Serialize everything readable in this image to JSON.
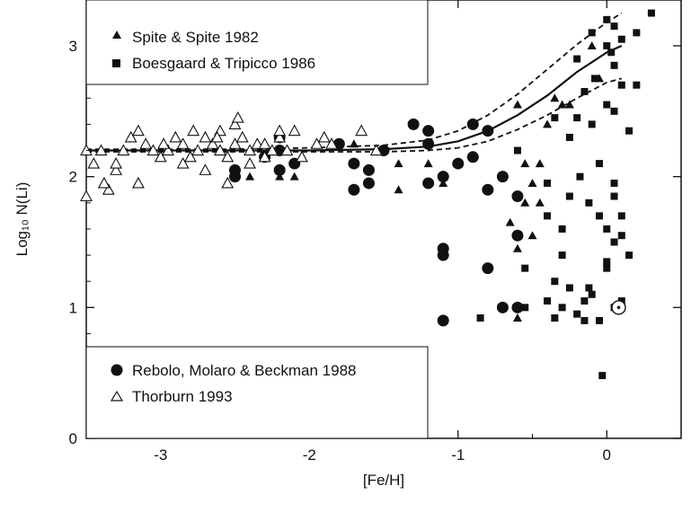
{
  "chart_data": {
    "type": "scatter",
    "title": "",
    "xlabel": "[Fe/H]",
    "ylabel": "Log₁₀ N(Li)",
    "xlim": [
      -3.5,
      0.5
    ],
    "ylim": [
      0,
      3.35
    ],
    "xticks": [
      -3,
      -2,
      -1,
      0
    ],
    "xtick_labels": [
      "-3",
      "-2",
      "-1",
      "0"
    ],
    "yticks": [
      0,
      1,
      2,
      3
    ],
    "ytick_labels": [
      "0",
      "1",
      "2",
      "3"
    ],
    "grid": false,
    "legend_placement": [
      "top-left",
      "bottom-left"
    ],
    "series": [
      {
        "name": "Spite & Spite 1982",
        "marker": "filled-triangle",
        "color": "#111111",
        "points": [
          [
            -2.5,
            2.0
          ],
          [
            -2.4,
            2.0
          ],
          [
            -2.2,
            2.0
          ],
          [
            -2.1,
            2.0
          ],
          [
            -1.7,
            2.25
          ],
          [
            -1.4,
            2.1
          ],
          [
            -1.4,
            1.9
          ],
          [
            -1.2,
            2.1
          ],
          [
            -1.1,
            1.95
          ],
          [
            -0.65,
            1.65
          ],
          [
            -0.6,
            1.55
          ],
          [
            -0.6,
            1.45
          ],
          [
            -0.6,
            0.92
          ],
          [
            -0.55,
            2.1
          ],
          [
            -0.55,
            1.8
          ],
          [
            -0.5,
            1.95
          ],
          [
            -0.5,
            1.55
          ],
          [
            -0.45,
            2.1
          ],
          [
            -0.45,
            1.8
          ],
          [
            -0.4,
            2.4
          ],
          [
            -0.35,
            2.6
          ],
          [
            -0.3,
            2.55
          ],
          [
            -0.25,
            2.55
          ],
          [
            -0.6,
            2.55
          ],
          [
            -0.1,
            3.0
          ],
          [
            -0.05,
            2.75
          ]
        ]
      },
      {
        "name": "Boesgaard & Tripicco 1986",
        "marker": "filled-square",
        "color": "#111111",
        "points": [
          [
            -0.85,
            0.92
          ],
          [
            -0.8,
            1.3
          ],
          [
            -0.6,
            2.2
          ],
          [
            -0.55,
            1.0
          ],
          [
            -0.55,
            1.3
          ],
          [
            -0.4,
            1.05
          ],
          [
            -0.4,
            1.7
          ],
          [
            -0.4,
            1.95
          ],
          [
            -0.35,
            1.2
          ],
          [
            -0.35,
            2.45
          ],
          [
            -0.3,
            1.0
          ],
          [
            -0.3,
            1.6
          ],
          [
            -0.25,
            1.15
          ],
          [
            -0.25,
            2.3
          ],
          [
            -0.2,
            0.95
          ],
          [
            -0.2,
            2.9
          ],
          [
            -0.15,
            1.05
          ],
          [
            -0.15,
            2.65
          ],
          [
            -0.1,
            1.1
          ],
          [
            -0.1,
            2.4
          ],
          [
            -0.05,
            0.9
          ],
          [
            -0.05,
            2.1
          ],
          [
            0.0,
            1.35
          ],
          [
            0.0,
            2.55
          ],
          [
            0.0,
            3.0
          ],
          [
            0.05,
            1.5
          ],
          [
            0.05,
            1.0
          ],
          [
            0.05,
            2.5
          ],
          [
            0.1,
            1.7
          ],
          [
            0.1,
            2.7
          ],
          [
            0.1,
            1.05
          ],
          [
            0.15,
            2.35
          ],
          [
            0.15,
            1.4
          ],
          [
            0.2,
            3.1
          ],
          [
            0.2,
            2.7
          ],
          [
            0.3,
            3.25
          ],
          [
            -0.03,
            0.48
          ],
          [
            -0.15,
            0.9
          ],
          [
            -0.12,
            1.15
          ],
          [
            -0.12,
            1.8
          ],
          [
            0.0,
            1.6
          ],
          [
            0.0,
            1.3
          ],
          [
            0.05,
            1.95
          ],
          [
            0.05,
            2.85
          ],
          [
            -0.1,
            3.1
          ],
          [
            0.05,
            3.15
          ],
          [
            0.1,
            3.05
          ],
          [
            -0.2,
            2.45
          ],
          [
            -0.18,
            2.0
          ],
          [
            0.05,
            1.85
          ],
          [
            -0.3,
            1.4
          ],
          [
            -0.25,
            1.85
          ],
          [
            -0.05,
            1.7
          ],
          [
            0.1,
            1.55
          ],
          [
            0.0,
            3.2
          ],
          [
            0.03,
            2.95
          ],
          [
            -0.08,
            2.75
          ],
          [
            -0.35,
            0.92
          ]
        ]
      },
      {
        "name": "Rebolo, Molaro & Beckman 1988",
        "marker": "filled-circle",
        "color": "#111111",
        "points": [
          [
            -2.5,
            2.0
          ],
          [
            -2.5,
            2.05
          ],
          [
            -2.3,
            2.15
          ],
          [
            -2.2,
            2.05
          ],
          [
            -2.2,
            2.2
          ],
          [
            -2.2,
            2.3
          ],
          [
            -2.1,
            2.1
          ],
          [
            -1.7,
            1.9
          ],
          [
            -1.7,
            2.1
          ],
          [
            -1.6,
            2.05
          ],
          [
            -1.6,
            1.95
          ],
          [
            -1.5,
            2.2
          ],
          [
            -1.3,
            2.4
          ],
          [
            -1.2,
            2.35
          ],
          [
            -1.2,
            1.95
          ],
          [
            -1.2,
            2.25
          ],
          [
            -1.1,
            2.0
          ],
          [
            -1.1,
            1.45
          ],
          [
            -1.1,
            1.4
          ],
          [
            -1.1,
            0.9
          ],
          [
            -1.0,
            2.1
          ],
          [
            -0.9,
            2.4
          ],
          [
            -0.9,
            2.15
          ],
          [
            -0.8,
            2.35
          ],
          [
            -0.8,
            1.9
          ],
          [
            -0.8,
            1.3
          ],
          [
            -0.7,
            2.0
          ],
          [
            -0.7,
            1.0
          ],
          [
            -0.6,
            1.85
          ],
          [
            -0.6,
            1.55
          ],
          [
            -0.6,
            1.0
          ],
          [
            -1.8,
            2.25
          ]
        ]
      },
      {
        "name": "Thorburn 1993",
        "marker": "open-triangle",
        "color": "#111111",
        "points": [
          [
            -3.5,
            2.2
          ],
          [
            -3.45,
            2.1
          ],
          [
            -3.4,
            2.2
          ],
          [
            -3.35,
            1.9
          ],
          [
            -3.3,
            2.05
          ],
          [
            -3.3,
            2.1
          ],
          [
            -3.25,
            2.2
          ],
          [
            -3.2,
            2.3
          ],
          [
            -3.15,
            2.35
          ],
          [
            -3.15,
            1.95
          ],
          [
            -3.1,
            2.25
          ],
          [
            -3.05,
            2.2
          ],
          [
            -3.0,
            2.15
          ],
          [
            -2.95,
            2.2
          ],
          [
            -2.9,
            2.3
          ],
          [
            -2.85,
            2.1
          ],
          [
            -2.85,
            2.25
          ],
          [
            -2.8,
            2.15
          ],
          [
            -2.75,
            2.2
          ],
          [
            -2.7,
            2.3
          ],
          [
            -2.7,
            2.05
          ],
          [
            -2.65,
            2.25
          ],
          [
            -2.6,
            2.2
          ],
          [
            -2.6,
            2.35
          ],
          [
            -2.55,
            2.15
          ],
          [
            -2.55,
            1.95
          ],
          [
            -2.5,
            2.25
          ],
          [
            -2.5,
            2.4
          ],
          [
            -2.45,
            2.3
          ],
          [
            -2.4,
            2.2
          ],
          [
            -2.4,
            2.1
          ],
          [
            -2.35,
            2.25
          ],
          [
            -2.3,
            2.15
          ],
          [
            -2.25,
            2.2
          ],
          [
            -2.2,
            2.3
          ],
          [
            -2.2,
            2.35
          ],
          [
            -2.15,
            2.2
          ],
          [
            -2.1,
            2.35
          ],
          [
            -2.05,
            2.15
          ],
          [
            -1.95,
            2.25
          ],
          [
            -1.9,
            2.3
          ],
          [
            -1.85,
            2.25
          ],
          [
            -1.65,
            2.35
          ],
          [
            -1.55,
            2.2
          ],
          [
            -3.5,
            1.85
          ],
          [
            -3.38,
            1.95
          ],
          [
            -2.98,
            2.25
          ],
          [
            -2.78,
            2.35
          ],
          [
            -2.62,
            2.3
          ],
          [
            -2.48,
            2.45
          ],
          [
            -2.3,
            2.25
          ]
        ]
      },
      {
        "name": "Sun",
        "marker": "sun-symbol",
        "color": "#111111",
        "points": [
          [
            0.08,
            1.0
          ]
        ]
      }
    ],
    "model_curves": [
      {
        "style": "solid",
        "x": [
          -3.5,
          -3.0,
          -2.5,
          -2.0,
          -1.5,
          -1.2,
          -1.0,
          -0.8,
          -0.6,
          -0.4,
          -0.2,
          0.0,
          0.1
        ],
        "y": [
          2.2,
          2.2,
          2.2,
          2.2,
          2.21,
          2.23,
          2.27,
          2.35,
          2.47,
          2.62,
          2.8,
          2.95,
          3.0
        ]
      },
      {
        "style": "dashed",
        "x": [
          -3.5,
          -3.0,
          -2.5,
          -2.0,
          -1.5,
          -1.2,
          -1.0,
          -0.8,
          -0.6,
          -0.4,
          -0.2,
          0.0,
          0.1
        ],
        "y": [
          2.21,
          2.21,
          2.21,
          2.22,
          2.24,
          2.28,
          2.35,
          2.47,
          2.63,
          2.82,
          3.01,
          3.18,
          3.25
        ]
      },
      {
        "style": "dashed",
        "x": [
          -3.5,
          -3.0,
          -2.5,
          -2.0,
          -1.5,
          -1.2,
          -1.0,
          -0.8,
          -0.6,
          -0.4,
          -0.2,
          0.0,
          0.1
        ],
        "y": [
          2.19,
          2.19,
          2.19,
          2.19,
          2.19,
          2.2,
          2.22,
          2.27,
          2.36,
          2.47,
          2.6,
          2.72,
          2.75
        ]
      }
    ]
  }
}
